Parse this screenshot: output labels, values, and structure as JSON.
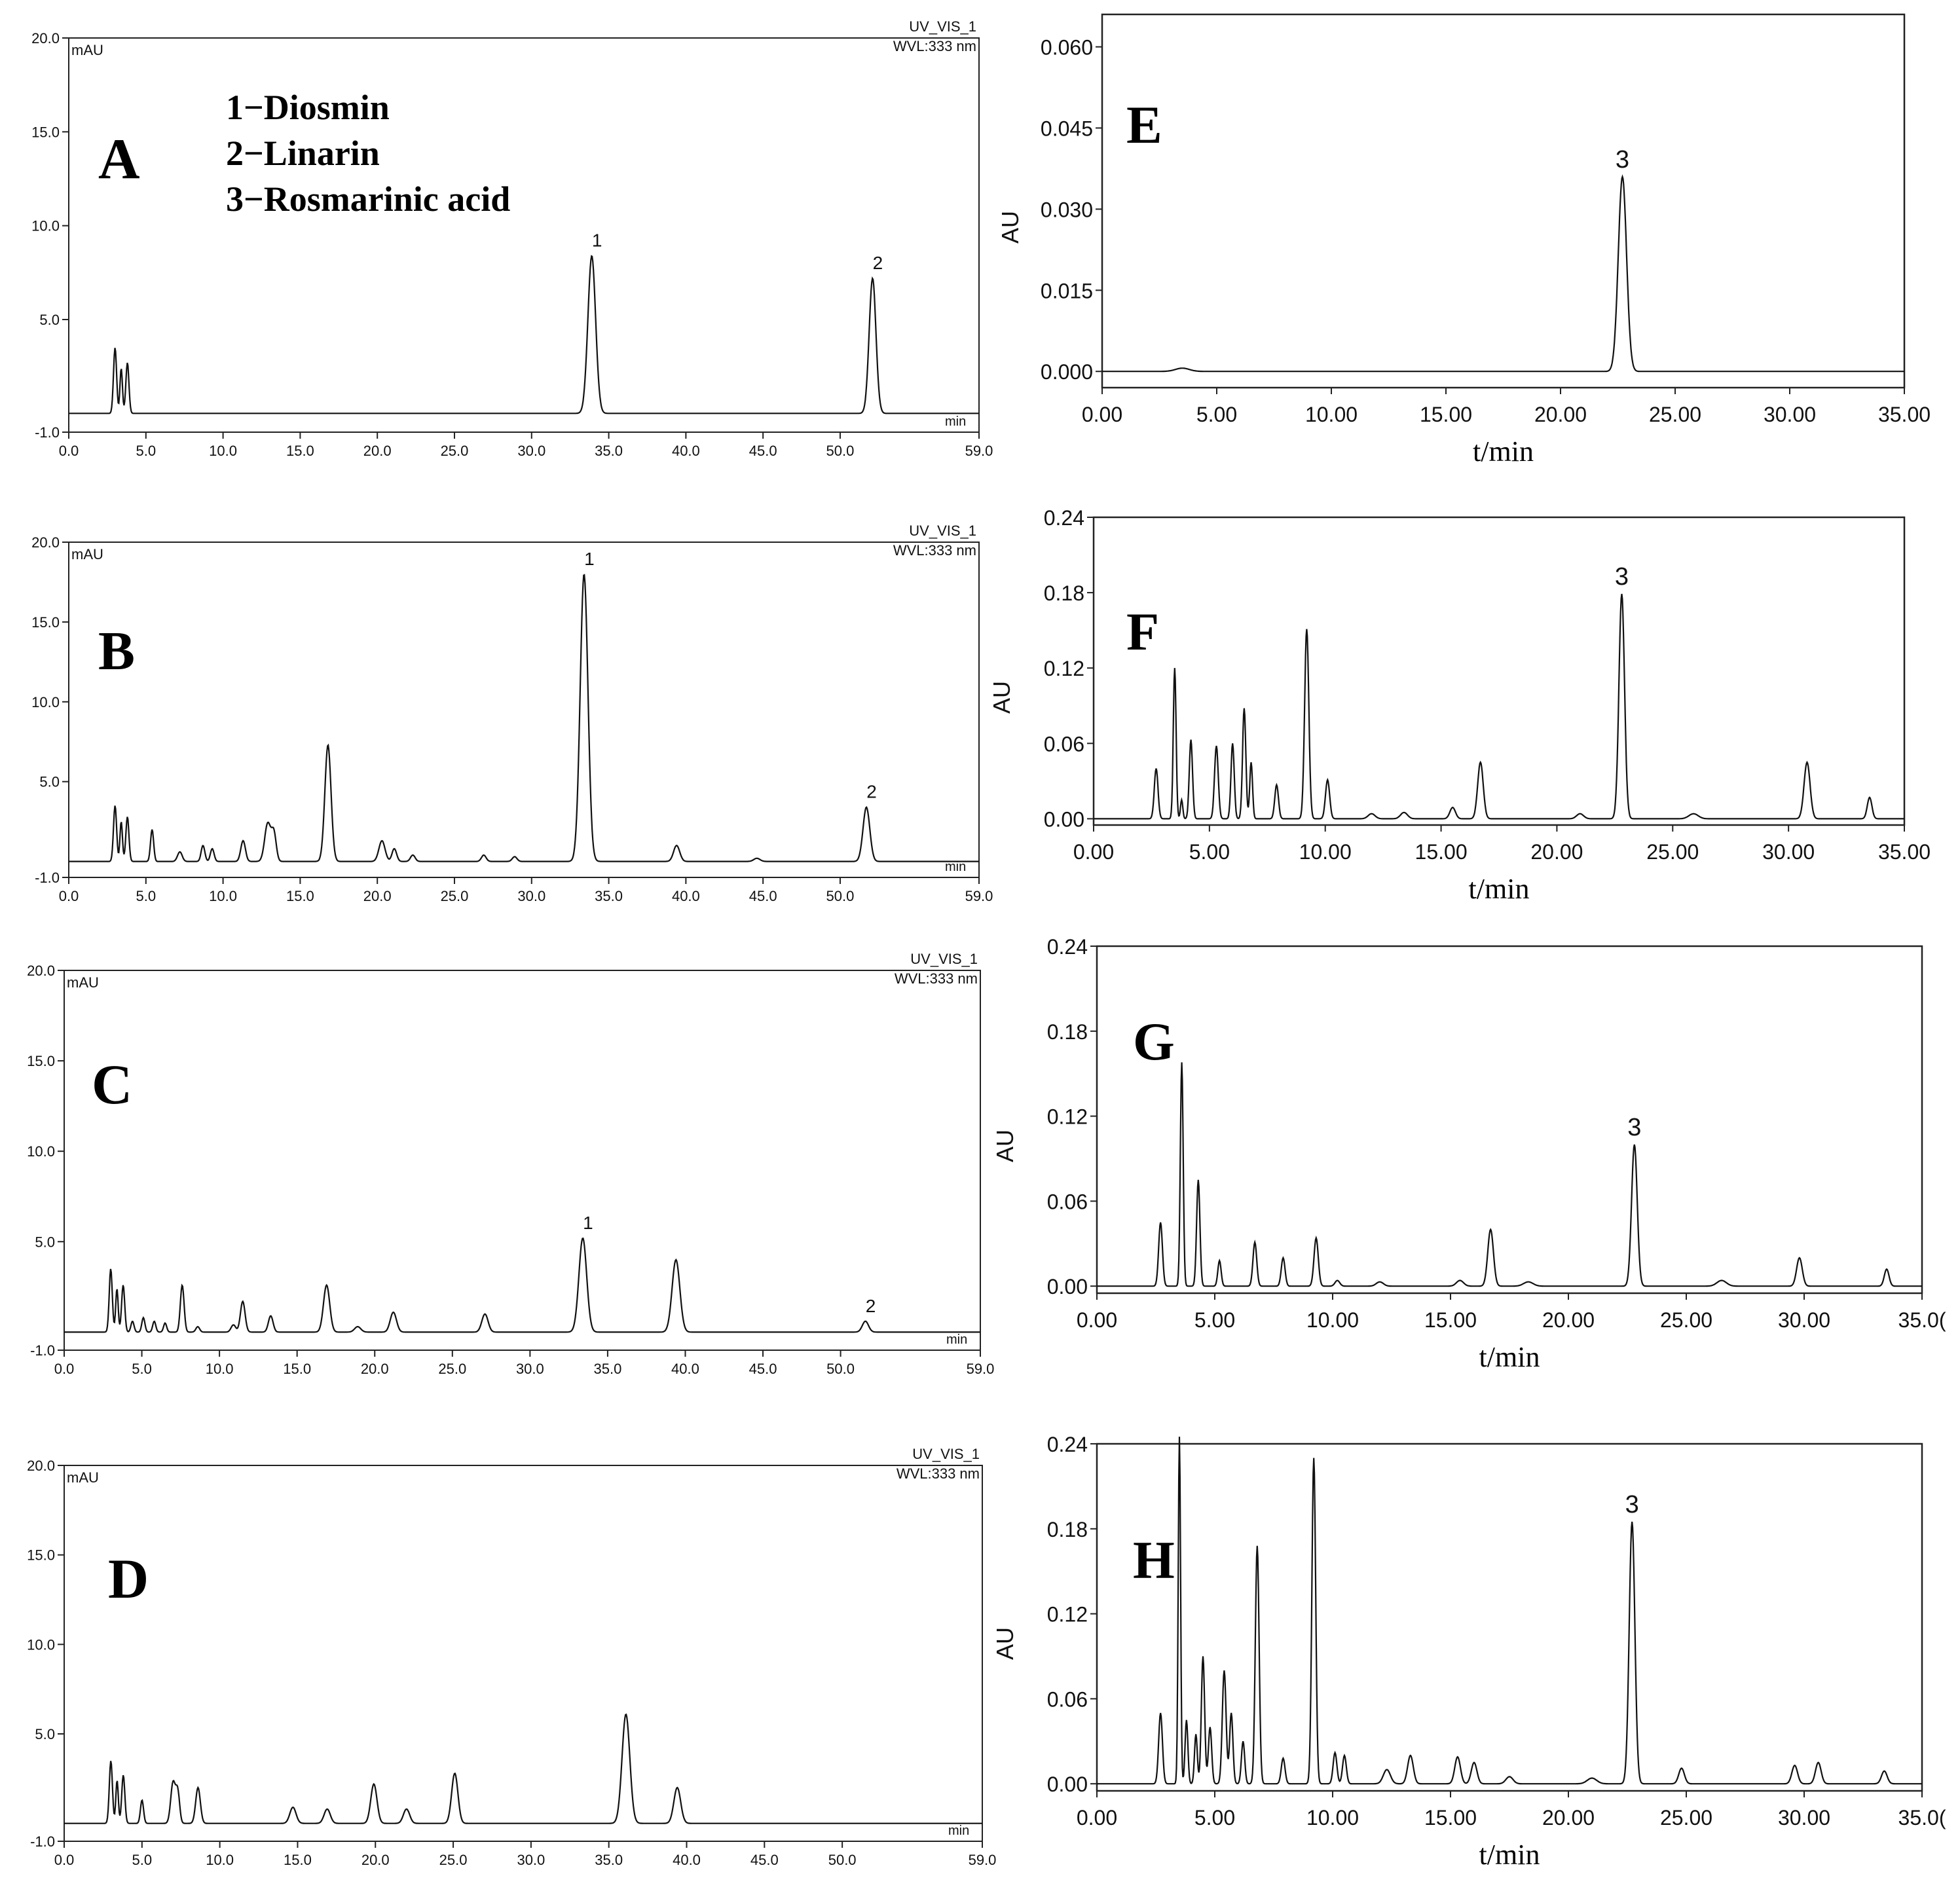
{
  "legend_lines": [
    "1−Diosmin",
    "2−Linarin",
    "3−Rosmarinic acid"
  ],
  "chart_data": [
    {
      "panel": "A",
      "type": "line",
      "style": "left",
      "unit": "mAU",
      "x_unit": "min",
      "header_lines": [
        "UV_VIS_1",
        "WVL:333 nm"
      ],
      "xlim": [
        0,
        59
      ],
      "ylim": [
        -1,
        20
      ],
      "xticks": [
        "0.0",
        "5.0",
        "10.0",
        "15.0",
        "20.0",
        "25.0",
        "30.0",
        "35.0",
        "40.0",
        "45.0",
        "50.0",
        "59.0"
      ],
      "yticks": [
        "-1.0",
        "5.0",
        "10.0",
        "15.0",
        "20.0"
      ],
      "ytick_values": [
        -1,
        5,
        10,
        15,
        20
      ],
      "baseline": 0,
      "peaks": [
        [
          3.0,
          3.5,
          0.1
        ],
        [
          3.4,
          2.4,
          0.08
        ],
        [
          3.8,
          2.7,
          0.1
        ],
        [
          33.9,
          8.4,
          0.25
        ],
        [
          52.1,
          7.2,
          0.22
        ]
      ],
      "peak_labels": [
        {
          "text": "1",
          "x": 33.9,
          "y": 8.4
        },
        {
          "text": "2",
          "x": 52.1,
          "y": 7.2
        }
      ]
    },
    {
      "panel": "B",
      "type": "line",
      "style": "left",
      "unit": "mAU",
      "x_unit": "min",
      "header_lines": [
        "UV_VIS_1",
        "WVL:333 nm"
      ],
      "xlim": [
        0,
        59
      ],
      "ylim": [
        -1,
        20
      ],
      "xticks": [
        "0.0",
        "5.0",
        "10.0",
        "15.0",
        "20.0",
        "25.0",
        "30.0",
        "35.0",
        "40.0",
        "45.0",
        "50.0",
        "59.0"
      ],
      "yticks": [
        "-1.0",
        "5.0",
        "10.0",
        "15.0",
        "20.0"
      ],
      "ytick_values": [
        -1,
        5,
        10,
        15,
        20
      ],
      "baseline": 0,
      "peaks": [
        [
          3.0,
          3.5,
          0.1
        ],
        [
          3.4,
          2.5,
          0.08
        ],
        [
          3.8,
          2.8,
          0.1
        ],
        [
          5.4,
          2.0,
          0.1
        ],
        [
          7.2,
          0.6,
          0.15
        ],
        [
          8.7,
          1.0,
          0.12
        ],
        [
          9.3,
          0.8,
          0.12
        ],
        [
          11.3,
          1.3,
          0.15
        ],
        [
          12.9,
          2.4,
          0.2
        ],
        [
          13.3,
          1.7,
          0.15
        ],
        [
          16.8,
          7.3,
          0.2
        ],
        [
          20.3,
          1.3,
          0.2
        ],
        [
          21.1,
          0.8,
          0.15
        ],
        [
          22.3,
          0.4,
          0.15
        ],
        [
          26.9,
          0.4,
          0.15
        ],
        [
          28.9,
          0.3,
          0.15
        ],
        [
          33.4,
          18.0,
          0.25
        ],
        [
          39.4,
          1.0,
          0.2
        ],
        [
          44.6,
          0.2,
          0.2
        ],
        [
          51.7,
          3.4,
          0.22
        ]
      ],
      "peak_labels": [
        {
          "text": "1",
          "x": 33.4,
          "y": 18.0
        },
        {
          "text": "2",
          "x": 51.7,
          "y": 3.4
        }
      ]
    },
    {
      "panel": "C",
      "type": "line",
      "style": "left",
      "unit": "mAU",
      "x_unit": "min",
      "header_lines": [
        "UV_VIS_1",
        "WVL:333 nm"
      ],
      "xlim": [
        0,
        59
      ],
      "ylim": [
        -1,
        20
      ],
      "xticks": [
        "0.0",
        "5.0",
        "10.0",
        "15.0",
        "20.0",
        "25.0",
        "30.0",
        "35.0",
        "40.0",
        "45.0",
        "50.0",
        "59.0"
      ],
      "yticks": [
        "-1.0",
        "5.0",
        "10.0",
        "15.0",
        "20.0"
      ],
      "ytick_values": [
        -1,
        5,
        10,
        15,
        20
      ],
      "baseline": 0,
      "peaks": [
        [
          3.0,
          3.5,
          0.1
        ],
        [
          3.4,
          2.4,
          0.08
        ],
        [
          3.8,
          2.6,
          0.1
        ],
        [
          4.4,
          0.6,
          0.1
        ],
        [
          5.1,
          0.8,
          0.1
        ],
        [
          5.8,
          0.6,
          0.1
        ],
        [
          6.5,
          0.5,
          0.1
        ],
        [
          7.6,
          2.6,
          0.12
        ],
        [
          8.6,
          0.3,
          0.12
        ],
        [
          10.9,
          0.4,
          0.15
        ],
        [
          11.5,
          1.7,
          0.15
        ],
        [
          13.3,
          0.9,
          0.15
        ],
        [
          16.9,
          2.6,
          0.2
        ],
        [
          18.9,
          0.3,
          0.2
        ],
        [
          21.2,
          1.1,
          0.2
        ],
        [
          27.1,
          1.0,
          0.2
        ],
        [
          33.4,
          5.2,
          0.25
        ],
        [
          39.4,
          4.0,
          0.25
        ],
        [
          51.6,
          0.6,
          0.2
        ]
      ],
      "peak_labels": [
        {
          "text": "1",
          "x": 33.4,
          "y": 5.2
        },
        {
          "text": "2",
          "x": 51.6,
          "y": 0.6
        }
      ]
    },
    {
      "panel": "D",
      "type": "line",
      "style": "left",
      "unit": "mAU",
      "x_unit": "min",
      "header_lines": [
        "UV_VIS_1",
        "WVL:333 nm"
      ],
      "xlim": [
        0,
        59
      ],
      "ylim": [
        -1,
        20
      ],
      "xticks": [
        "0.0",
        "5.0",
        "10.0",
        "15.0",
        "20.0",
        "25.0",
        "30.0",
        "35.0",
        "40.0",
        "45.0",
        "50.0",
        "59.0"
      ],
      "yticks": [
        "-1.0",
        "5.0",
        "10.0",
        "15.0",
        "20.0"
      ],
      "ytick_values": [
        -1,
        5,
        10,
        15,
        20
      ],
      "baseline": 0,
      "peaks": [
        [
          3.0,
          3.5,
          0.1
        ],
        [
          3.4,
          2.4,
          0.08
        ],
        [
          3.8,
          2.7,
          0.1
        ],
        [
          5.0,
          1.3,
          0.1
        ],
        [
          7.0,
          2.3,
          0.15
        ],
        [
          7.3,
          1.7,
          0.12
        ],
        [
          8.6,
          2.0,
          0.15
        ],
        [
          14.7,
          0.9,
          0.2
        ],
        [
          16.9,
          0.8,
          0.2
        ],
        [
          19.9,
          2.2,
          0.2
        ],
        [
          22.0,
          0.8,
          0.2
        ],
        [
          25.1,
          2.8,
          0.2
        ],
        [
          36.1,
          6.1,
          0.25
        ],
        [
          39.4,
          2.0,
          0.22
        ]
      ],
      "peak_labels": []
    },
    {
      "panel": "E",
      "type": "line",
      "style": "right",
      "ylabel": "AU",
      "xlabel": "t/min",
      "xlim": [
        0,
        35
      ],
      "ylim": [
        -0.003,
        0.066
      ],
      "xticks": [
        "0.00",
        "5.00",
        "10.00",
        "15.00",
        "20.00",
        "25.00",
        "30.00",
        "35.00"
      ],
      "yticks": [
        "0.000",
        "0.015",
        "0.030",
        "0.045",
        "0.060"
      ],
      "ytick_values": [
        0,
        0.015,
        0.03,
        0.045,
        0.06
      ],
      "baseline": 0,
      "peaks": [
        [
          3.5,
          0.0006,
          0.3
        ],
        [
          22.7,
          0.036,
          0.18
        ]
      ],
      "peak_labels": [
        {
          "text": "3",
          "x": 22.7,
          "y": 0.036
        }
      ]
    },
    {
      "panel": "F",
      "type": "line",
      "style": "right",
      "ylabel": "AU",
      "xlabel": "t/min",
      "xlim": [
        0,
        35
      ],
      "ylim": [
        -0.005,
        0.24
      ],
      "xticks": [
        "0.00",
        "5.00",
        "10.00",
        "15.00",
        "20.00",
        "25.00",
        "30.00",
        "35.00"
      ],
      "yticks": [
        "0.00",
        "0.06",
        "0.12",
        "0.18",
        "0.24"
      ],
      "ytick_values": [
        0,
        0.06,
        0.12,
        0.18,
        0.24
      ],
      "baseline": 0,
      "peaks": [
        [
          2.7,
          0.04,
          0.08
        ],
        [
          3.5,
          0.12,
          0.06
        ],
        [
          3.8,
          0.015,
          0.05
        ],
        [
          4.2,
          0.063,
          0.07
        ],
        [
          5.3,
          0.058,
          0.08
        ],
        [
          6.0,
          0.06,
          0.07
        ],
        [
          6.5,
          0.088,
          0.07
        ],
        [
          6.8,
          0.045,
          0.06
        ],
        [
          7.9,
          0.027,
          0.08
        ],
        [
          9.2,
          0.151,
          0.09
        ],
        [
          10.1,
          0.031,
          0.09
        ],
        [
          12.0,
          0.004,
          0.15
        ],
        [
          13.4,
          0.005,
          0.15
        ],
        [
          15.5,
          0.009,
          0.12
        ],
        [
          16.7,
          0.045,
          0.12
        ],
        [
          21.0,
          0.004,
          0.15
        ],
        [
          22.8,
          0.179,
          0.12
        ],
        [
          25.9,
          0.004,
          0.2
        ],
        [
          30.8,
          0.045,
          0.13
        ],
        [
          33.5,
          0.017,
          0.1
        ]
      ],
      "peak_labels": [
        {
          "text": "3",
          "x": 22.8,
          "y": 0.179
        }
      ]
    },
    {
      "panel": "G",
      "type": "line",
      "style": "right",
      "ylabel": "AU",
      "xlabel": "t/min",
      "xlim": [
        0,
        35
      ],
      "ylim": [
        -0.005,
        0.24
      ],
      "xticks": [
        "0.00",
        "5.00",
        "10.00",
        "15.00",
        "20.00",
        "25.00",
        "30.00",
        "35.0("
      ],
      "yticks": [
        "0.00",
        "0.06",
        "0.12",
        "0.18",
        "0.24"
      ],
      "ytick_values": [
        0,
        0.06,
        0.12,
        0.18,
        0.24
      ],
      "baseline": 0,
      "peaks": [
        [
          2.7,
          0.045,
          0.08
        ],
        [
          3.6,
          0.158,
          0.06
        ],
        [
          4.3,
          0.075,
          0.07
        ],
        [
          5.2,
          0.018,
          0.07
        ],
        [
          6.7,
          0.031,
          0.08
        ],
        [
          7.9,
          0.02,
          0.08
        ],
        [
          9.3,
          0.034,
          0.09
        ],
        [
          10.2,
          0.004,
          0.1
        ],
        [
          12.0,
          0.003,
          0.15
        ],
        [
          15.4,
          0.004,
          0.15
        ],
        [
          16.7,
          0.04,
          0.12
        ],
        [
          18.3,
          0.003,
          0.2
        ],
        [
          22.8,
          0.1,
          0.12
        ],
        [
          26.5,
          0.004,
          0.2
        ],
        [
          29.8,
          0.02,
          0.12
        ],
        [
          33.5,
          0.012,
          0.1
        ]
      ],
      "peak_labels": [
        {
          "text": "3",
          "x": 22.8,
          "y": 0.1
        }
      ]
    },
    {
      "panel": "H",
      "type": "line",
      "style": "right",
      "ylabel": "AU",
      "xlabel": "t/min",
      "xlim": [
        0,
        35
      ],
      "ylim": [
        -0.005,
        0.24
      ],
      "xticks": [
        "0.00",
        "5.00",
        "10.00",
        "15.00",
        "20.00",
        "25.00",
        "30.00",
        "35.0("
      ],
      "yticks": [
        "0.00",
        "0.06",
        "0.12",
        "0.18",
        "0.24"
      ],
      "ytick_values": [
        0,
        0.06,
        0.12,
        0.18,
        0.24
      ],
      "baseline": 0,
      "peaks": [
        [
          2.7,
          0.05,
          0.08
        ],
        [
          3.5,
          0.245,
          0.05
        ],
        [
          3.8,
          0.045,
          0.06
        ],
        [
          4.2,
          0.035,
          0.06
        ],
        [
          4.5,
          0.09,
          0.07
        ],
        [
          4.8,
          0.04,
          0.07
        ],
        [
          5.4,
          0.08,
          0.08
        ],
        [
          5.7,
          0.05,
          0.07
        ],
        [
          6.2,
          0.03,
          0.07
        ],
        [
          6.8,
          0.168,
          0.08
        ],
        [
          7.9,
          0.018,
          0.08
        ],
        [
          9.2,
          0.23,
          0.08
        ],
        [
          10.1,
          0.022,
          0.08
        ],
        [
          10.5,
          0.02,
          0.08
        ],
        [
          12.3,
          0.01,
          0.15
        ],
        [
          13.3,
          0.02,
          0.12
        ],
        [
          15.3,
          0.019,
          0.12
        ],
        [
          16.0,
          0.015,
          0.12
        ],
        [
          17.5,
          0.005,
          0.15
        ],
        [
          21.0,
          0.004,
          0.2
        ],
        [
          22.7,
          0.185,
          0.12
        ],
        [
          24.8,
          0.011,
          0.12
        ],
        [
          29.6,
          0.013,
          0.12
        ],
        [
          30.6,
          0.015,
          0.12
        ],
        [
          33.4,
          0.009,
          0.12
        ]
      ],
      "peak_labels": [
        {
          "text": "3",
          "x": 22.7,
          "y": 0.185
        }
      ]
    }
  ],
  "panel_letters": [
    "A",
    "B",
    "C",
    "D",
    "E",
    "F",
    "G",
    "H"
  ]
}
